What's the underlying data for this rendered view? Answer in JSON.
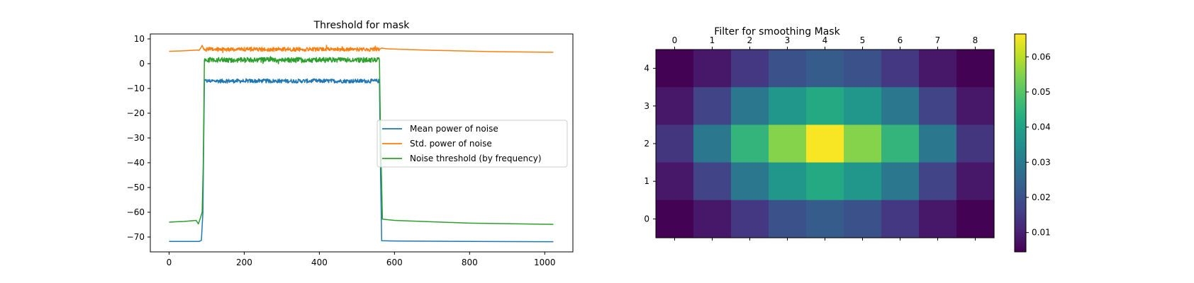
{
  "chart_data": [
    {
      "type": "line",
      "title": "Threshold for mask",
      "xlabel": "",
      "ylabel": "",
      "xlim": [
        -50,
        1075
      ],
      "ylim": [
        -76,
        12
      ],
      "xticks": [
        0,
        200,
        400,
        600,
        800,
        1000
      ],
      "yticks": [
        10,
        0,
        -10,
        -20,
        -30,
        -40,
        -50,
        -60,
        -70
      ],
      "legend_position": "center-right",
      "grid": false,
      "series": [
        {
          "name": "Mean power of noise",
          "color": "#1f77b4",
          "points": [
            [
              0,
              -71.8
            ],
            [
              40,
              -71.8
            ],
            [
              80,
              -71.8
            ],
            [
              86,
              -71.3
            ],
            [
              90,
              -60
            ],
            [
              94,
              -7
            ],
            [
              560,
              -7
            ],
            [
              563,
              -45
            ],
            [
              566,
              -71.5
            ],
            [
              600,
              -71.6
            ],
            [
              800,
              -71.8
            ],
            [
              1023,
              -71.9
            ]
          ],
          "noise_range": [
            94,
            560
          ],
          "noise_amplitude": 0.8
        },
        {
          "name": "Std. power of noise",
          "color": "#ff7f0e",
          "points": [
            [
              0,
              5.0
            ],
            [
              40,
              5.2
            ],
            [
              76,
              5.5
            ],
            [
              80,
              5.4
            ],
            [
              85,
              6.5
            ],
            [
              88,
              7.4
            ],
            [
              92,
              5.8
            ],
            [
              560,
              5.8
            ],
            [
              566,
              6.3
            ],
            [
              580,
              6.0
            ],
            [
              700,
              5.4
            ],
            [
              850,
              4.9
            ],
            [
              1023,
              4.6
            ]
          ],
          "noise_range": [
            92,
            560
          ],
          "noise_amplitude": 0.8
        },
        {
          "name": "Noise threshold (by frequency)",
          "color": "#2ca02c",
          "points": [
            [
              0,
              -64.0
            ],
            [
              40,
              -63.7
            ],
            [
              72,
              -63.3
            ],
            [
              78,
              -64.7
            ],
            [
              84,
              -62.0
            ],
            [
              88,
              -60.0
            ],
            [
              91,
              -40
            ],
            [
              94,
              1.5
            ],
            [
              560,
              1.5
            ],
            [
              563,
              -30
            ],
            [
              568,
              -62.8
            ],
            [
              600,
              -63.3
            ],
            [
              800,
              -64.4
            ],
            [
              1023,
              -64.9
            ]
          ],
          "noise_range": [
            94,
            560
          ],
          "noise_amplitude": 1.0
        }
      ]
    },
    {
      "type": "heatmap",
      "title": "Filter for smoothing Mask",
      "x_ticks": [
        0,
        1,
        2,
        3,
        4,
        5,
        6,
        7,
        8
      ],
      "y_ticks": [
        4,
        3,
        2,
        1,
        0
      ],
      "colorbar_ticks": [
        0.01,
        0.02,
        0.03,
        0.04,
        0.05,
        0.06
      ],
      "value_range": [
        0.0045,
        0.0665
      ],
      "colormap": "viridis",
      "rows_top_to_bottom": [
        [
          0.0046,
          0.0085,
          0.0147,
          0.02,
          0.0225,
          0.02,
          0.0147,
          0.0085,
          0.0046
        ],
        [
          0.0085,
          0.017,
          0.029,
          0.037,
          0.042,
          0.037,
          0.029,
          0.017,
          0.0085
        ],
        [
          0.014,
          0.029,
          0.045,
          0.055,
          0.066,
          0.055,
          0.045,
          0.029,
          0.014
        ],
        [
          0.0085,
          0.017,
          0.029,
          0.037,
          0.042,
          0.037,
          0.029,
          0.017,
          0.0085
        ],
        [
          0.0046,
          0.0085,
          0.0147,
          0.02,
          0.0225,
          0.02,
          0.0147,
          0.0085,
          0.0046
        ]
      ]
    }
  ]
}
